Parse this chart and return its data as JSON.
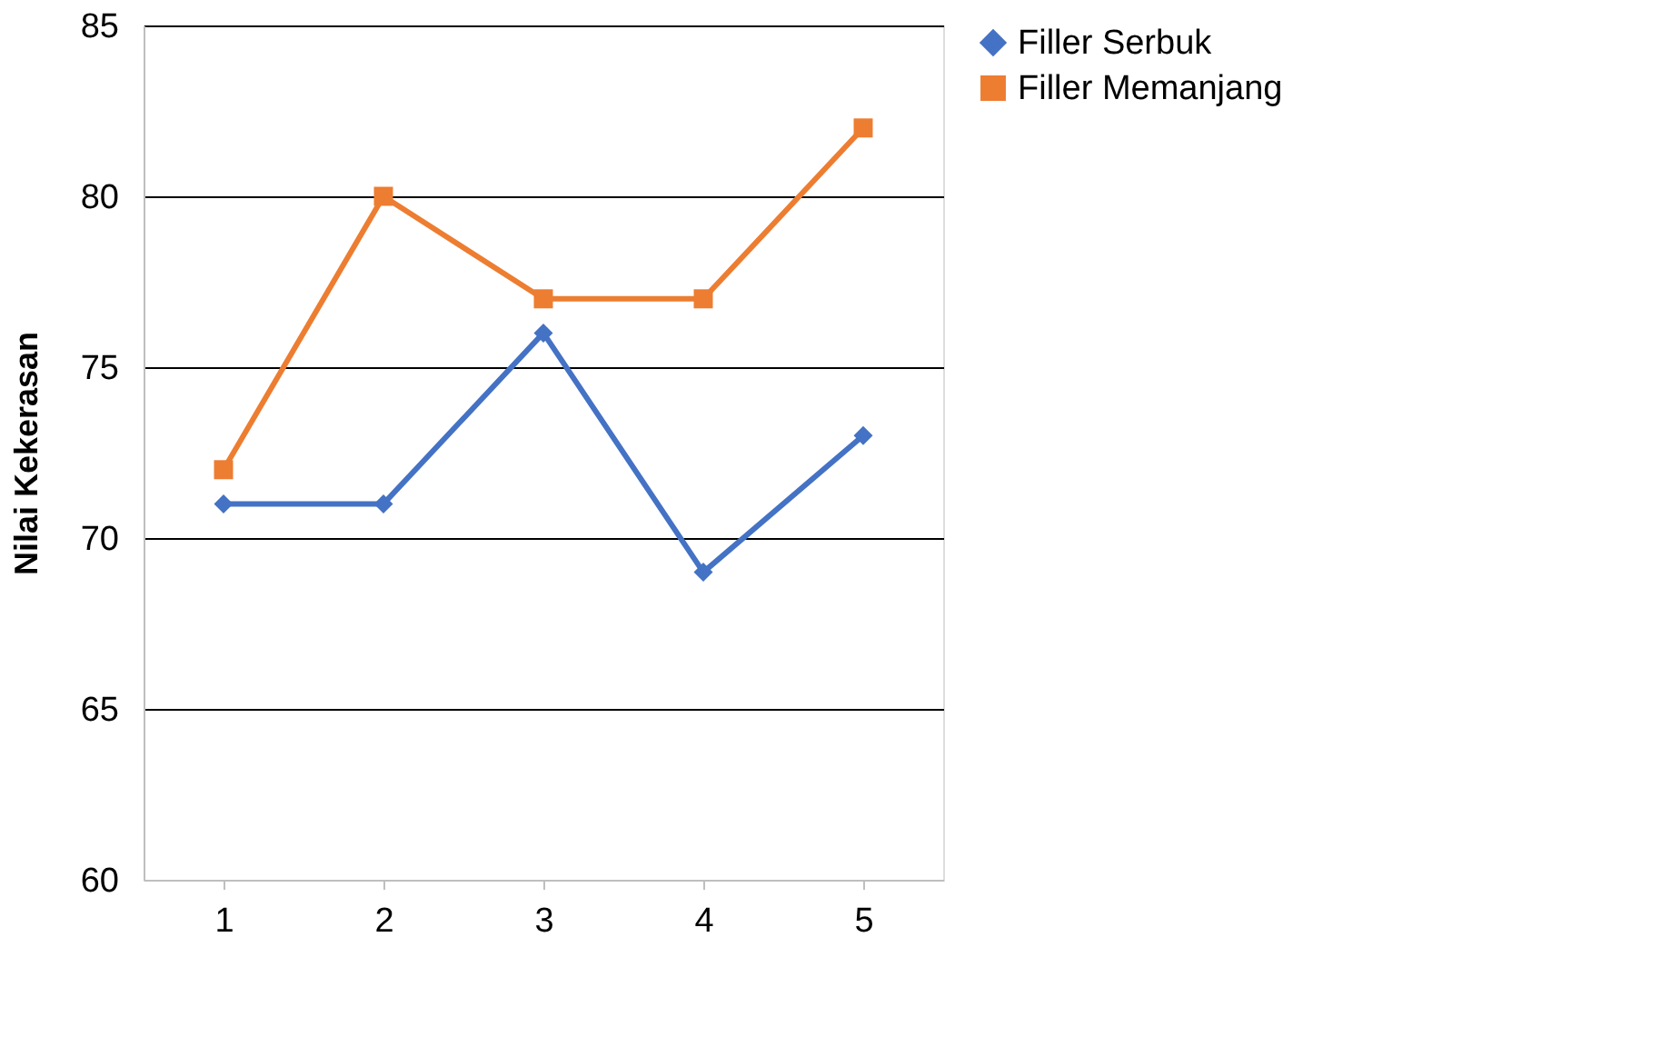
{
  "chart_data": {
    "type": "line",
    "ylabel": "Nilai Kekerasan",
    "categories": [
      "1",
      "2",
      "3",
      "4",
      "5"
    ],
    "series": [
      {
        "name": "Filler Serbuk",
        "color": "#4472c4",
        "marker": "diamond",
        "values": [
          71,
          71,
          76,
          69,
          73
        ]
      },
      {
        "name": "Filler Memanjang",
        "color": "#ed7d31",
        "marker": "square",
        "values": [
          72,
          80,
          77,
          77,
          82
        ]
      }
    ],
    "ylim": [
      60,
      85
    ],
    "yticks": [
      60,
      65,
      70,
      75,
      80,
      85
    ],
    "grid": "y",
    "legend": "right",
    "line_style": "solid"
  }
}
